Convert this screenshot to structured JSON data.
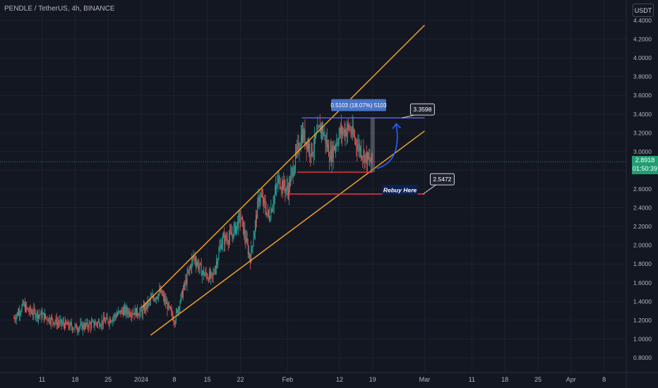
{
  "header": {
    "symbol": "PENDLE / TetherUS, 4h, BINANCE",
    "currency": "USDT"
  },
  "current_price": {
    "value": "2.8918",
    "countdown": "01:50:39",
    "color": "#26a69a"
  },
  "colors": {
    "background": "#131722",
    "channel": "#f0a02c",
    "support": "#f23645",
    "resistance": "#5b5fd6",
    "up": "#26a69a",
    "down": "#ef5350",
    "projection": "#2962ff"
  },
  "chart_data": {
    "type": "candlestick",
    "ylim": [
      0.8,
      4.45
    ],
    "y_ticks": [
      "0.8000",
      "1.0000",
      "1.2000",
      "1.4000",
      "1.6000",
      "1.8000",
      "2.0000",
      "2.2000",
      "2.4000",
      "2.6000",
      "2.8000",
      "3.0000",
      "3.2000",
      "3.4000",
      "3.6000",
      "3.8000",
      "4.0000",
      "4.2000",
      "4.4000"
    ],
    "y_tick_values": [
      0.8,
      1.0,
      1.2,
      1.4,
      1.6,
      1.8,
      2.0,
      2.2,
      2.4,
      2.6,
      2.8,
      3.0,
      3.2,
      3.4,
      3.6,
      3.8,
      4.0,
      4.2,
      4.4
    ],
    "x_ticks": [
      "11",
      "18",
      "25",
      "2024",
      "8",
      "15",
      "22",
      "Feb",
      "12",
      "19",
      "Mar",
      "11",
      "18",
      "25",
      "Apr",
      "8"
    ],
    "x_tick_dates": [
      "2023-12-11",
      "2023-12-18",
      "2023-12-25",
      "2024-01-01",
      "2024-01-08",
      "2024-01-15",
      "2024-01-22",
      "2024-02-01",
      "2024-02-12",
      "2024-02-19",
      "2024-03-01",
      "2024-03-11",
      "2024-03-18",
      "2024-03-25",
      "2024-04-01",
      "2024-04-08"
    ],
    "price_path": [
      {
        "date": "2023-12-05",
        "price": 1.22
      },
      {
        "date": "2023-12-07",
        "price": 1.36
      },
      {
        "date": "2023-12-08",
        "price": 1.3
      },
      {
        "date": "2023-12-11",
        "price": 1.25
      },
      {
        "date": "2023-12-14",
        "price": 1.18
      },
      {
        "date": "2023-12-18",
        "price": 1.12
      },
      {
        "date": "2023-12-21",
        "price": 1.15
      },
      {
        "date": "2023-12-25",
        "price": 1.2
      },
      {
        "date": "2023-12-28",
        "price": 1.3
      },
      {
        "date": "2024-01-01",
        "price": 1.28
      },
      {
        "date": "2024-01-03",
        "price": 1.42
      },
      {
        "date": "2024-01-05",
        "price": 1.5
      },
      {
        "date": "2024-01-07",
        "price": 1.3
      },
      {
        "date": "2024-01-08",
        "price": 1.2
      },
      {
        "date": "2024-01-10",
        "price": 1.55
      },
      {
        "date": "2024-01-12",
        "price": 1.88
      },
      {
        "date": "2024-01-14",
        "price": 1.7
      },
      {
        "date": "2024-01-16",
        "price": 1.65
      },
      {
        "date": "2024-01-18",
        "price": 2.05
      },
      {
        "date": "2024-01-20",
        "price": 2.1
      },
      {
        "date": "2024-01-22",
        "price": 2.3
      },
      {
        "date": "2024-01-24",
        "price": 1.85
      },
      {
        "date": "2024-01-26",
        "price": 2.55
      },
      {
        "date": "2024-01-28",
        "price": 2.3
      },
      {
        "date": "2024-01-30",
        "price": 2.7
      },
      {
        "date": "2024-02-01",
        "price": 2.58
      },
      {
        "date": "2024-02-02",
        "price": 2.8
      },
      {
        "date": "2024-02-04",
        "price": 3.2
      },
      {
        "date": "2024-02-06",
        "price": 3.0
      },
      {
        "date": "2024-02-08",
        "price": 3.28
      },
      {
        "date": "2024-02-10",
        "price": 2.95
      },
      {
        "date": "2024-02-12",
        "price": 3.2
      },
      {
        "date": "2024-02-14",
        "price": 3.25
      },
      {
        "date": "2024-02-16",
        "price": 3.05
      },
      {
        "date": "2024-02-18",
        "price": 2.9
      },
      {
        "date": "2024-02-19",
        "price": 2.89
      }
    ],
    "annotations": {
      "channel_upper": {
        "start": {
          "date": "2024-01-01",
          "price": 1.33
        },
        "end": {
          "date": "2024-03-01",
          "price": 4.35
        }
      },
      "channel_lower": {
        "start": {
          "date": "2024-01-03",
          "price": 1.04
        },
        "end": {
          "date": "2024-03-01",
          "price": 3.22
        }
      },
      "resistance": {
        "price": 3.3598,
        "from": "2024-02-04",
        "to": "2024-03-01"
      },
      "support_upper": {
        "price": 2.78,
        "from": "2024-02-03",
        "to": "2024-02-19"
      },
      "support_lower": {
        "price": 2.5472,
        "from": "2024-02-01",
        "to": "2024-03-01"
      },
      "measure_label": "0.5103 (18.07%) 5103",
      "resistance_label": "3.3598",
      "rebuy_label": "Rebuy Here",
      "rebuy_price_label": "2.5472"
    }
  }
}
